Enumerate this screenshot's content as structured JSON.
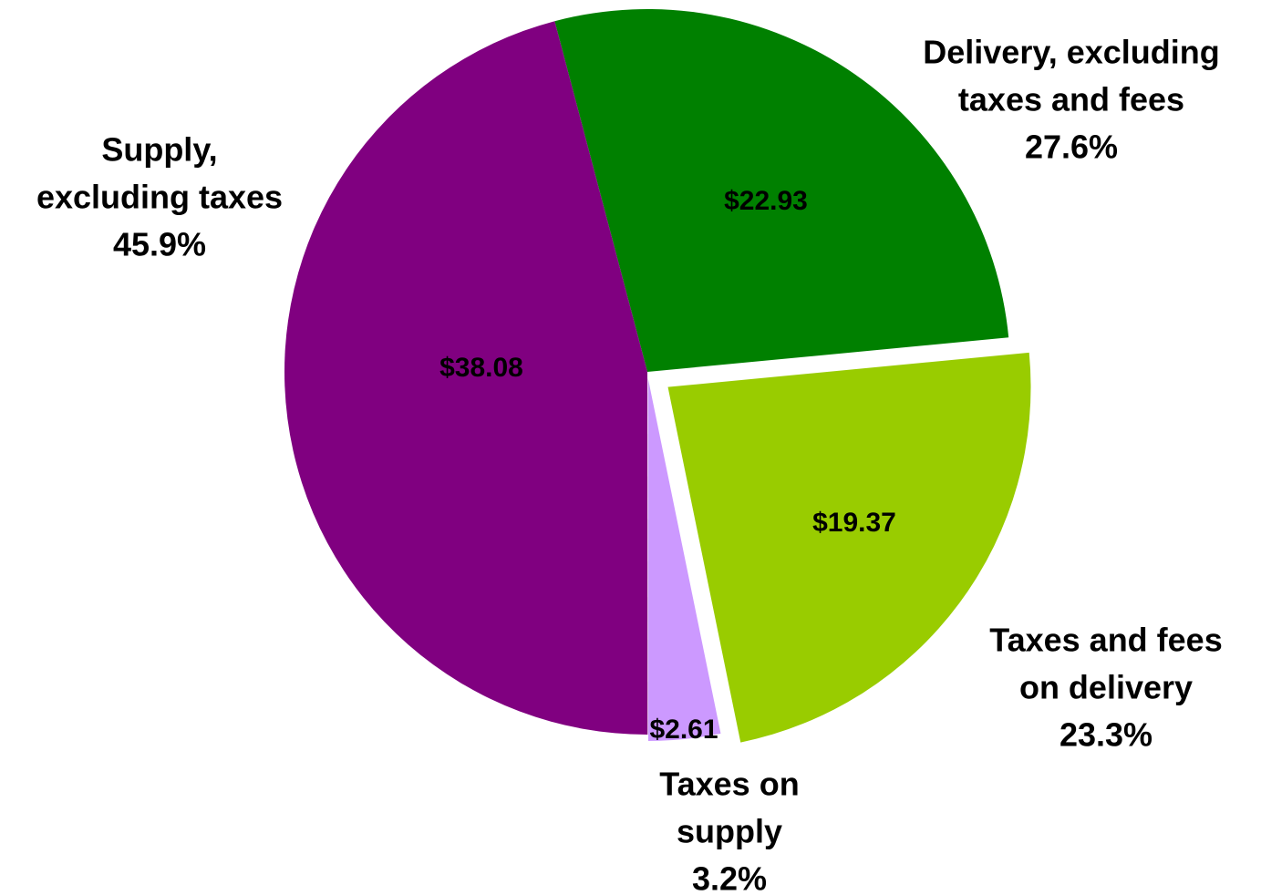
{
  "chart_data": {
    "type": "pie",
    "categories": [
      [
        "Delivery, excluding",
        "taxes and fees"
      ],
      [
        "Taxes and fees",
        "on delivery"
      ],
      [
        "Taxes on",
        "supply"
      ],
      [
        "Supply,",
        "excluding taxes"
      ]
    ],
    "values": [
      27.6,
      23.3,
      3.2,
      45.9
    ],
    "value_labels": [
      "27.6%",
      "23.3%",
      "3.2%",
      "45.9%"
    ],
    "amounts": [
      22.93,
      19.37,
      2.61,
      38.08
    ],
    "amount_labels": [
      "$22.93",
      "$19.37",
      "$2.61",
      "$38.08"
    ],
    "colors": [
      "#008000",
      "#99cc00",
      "#cc99ff",
      "#800080"
    ]
  }
}
